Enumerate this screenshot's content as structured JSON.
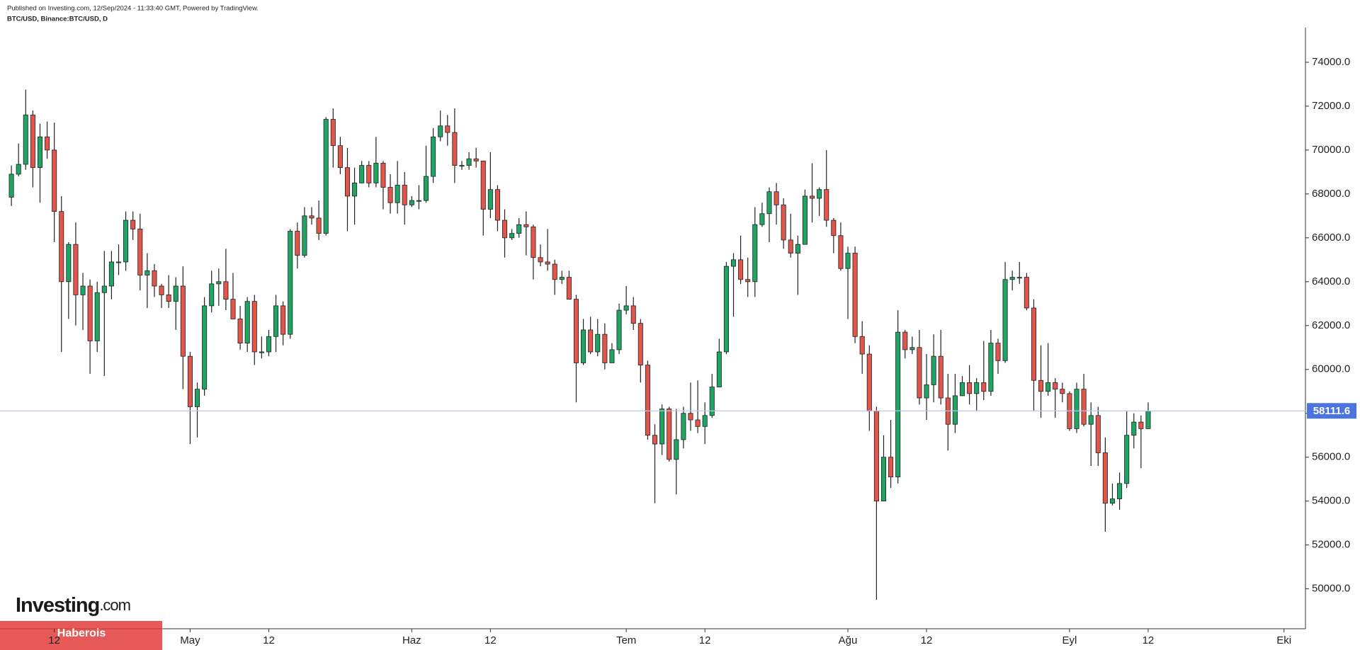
{
  "header": {
    "published": "Published on Investing.com, 12/Sep/2024 - 11:33:40 GMT, Powered by TradingView.",
    "symbol": "BTC/USD, Binance:BTC/USD, D"
  },
  "logo": {
    "brand": "Investing",
    "domain": ".com"
  },
  "watermark": "Haberois",
  "chart_data": {
    "type": "candlestick",
    "up_color": "#1fa463",
    "down_color": "#e2554b",
    "wick_color": "#222222",
    "last_price": 58111.6,
    "last_price_color": "#4c74e0",
    "ylim": [
      48180,
      75580
    ],
    "yticks": [
      {
        "value": 50000,
        "label": "50000.0"
      },
      {
        "value": 52000,
        "label": "52000.0"
      },
      {
        "value": 54000,
        "label": "54000.0"
      },
      {
        "value": 56000,
        "label": "56000.0"
      },
      {
        "value": 58000,
        "label": "58000.0"
      },
      {
        "value": 60000,
        "label": "60000.0"
      },
      {
        "value": 62000,
        "label": "62000.0"
      },
      {
        "value": 64000,
        "label": "64000.0"
      },
      {
        "value": 66000,
        "label": "66000.0"
      },
      {
        "value": 68000,
        "label": "68000.0"
      },
      {
        "value": 70000,
        "label": "70000.0"
      },
      {
        "value": 72000,
        "label": "72000.0"
      },
      {
        "value": 74000,
        "label": "74000.0"
      }
    ],
    "xlim": [
      "2024-04-05",
      "2024-10-04"
    ],
    "xticks": [
      {
        "value": "2024-04-12",
        "label": "12"
      },
      {
        "value": "2024-05-01",
        "label": "May"
      },
      {
        "value": "2024-05-12",
        "label": "12"
      },
      {
        "value": "2024-06-01",
        "label": "Haz"
      },
      {
        "value": "2024-06-12",
        "label": "12"
      },
      {
        "value": "2024-07-01",
        "label": "Tem"
      },
      {
        "value": "2024-07-12",
        "label": "12"
      },
      {
        "value": "2024-08-01",
        "label": "Ağu"
      },
      {
        "value": "2024-08-12",
        "label": "12"
      },
      {
        "value": "2024-09-01",
        "label": "Eyl"
      },
      {
        "value": "2024-09-12",
        "label": "12"
      },
      {
        "value": "2024-10-01",
        "label": "Eki"
      }
    ],
    "x": [
      "2024-04-06",
      "2024-04-07",
      "2024-04-08",
      "2024-04-09",
      "2024-04-10",
      "2024-04-11",
      "2024-04-12",
      "2024-04-13",
      "2024-04-14",
      "2024-04-15",
      "2024-04-16",
      "2024-04-17",
      "2024-04-18",
      "2024-04-19",
      "2024-04-20",
      "2024-04-21",
      "2024-04-22",
      "2024-04-23",
      "2024-04-24",
      "2024-04-25",
      "2024-04-26",
      "2024-04-27",
      "2024-04-28",
      "2024-04-29",
      "2024-04-30",
      "2024-05-01",
      "2024-05-02",
      "2024-05-03",
      "2024-05-04",
      "2024-05-05",
      "2024-05-06",
      "2024-05-07",
      "2024-05-08",
      "2024-05-09",
      "2024-05-10",
      "2024-05-11",
      "2024-05-12",
      "2024-05-13",
      "2024-05-14",
      "2024-05-15",
      "2024-05-16",
      "2024-05-17",
      "2024-05-18",
      "2024-05-19",
      "2024-05-20",
      "2024-05-21",
      "2024-05-22",
      "2024-05-23",
      "2024-05-24",
      "2024-05-25",
      "2024-05-26",
      "2024-05-27",
      "2024-05-28",
      "2024-05-29",
      "2024-05-30",
      "2024-05-31",
      "2024-06-01",
      "2024-06-02",
      "2024-06-03",
      "2024-06-04",
      "2024-06-05",
      "2024-06-06",
      "2024-06-07",
      "2024-06-08",
      "2024-06-09",
      "2024-06-10",
      "2024-06-11",
      "2024-06-12",
      "2024-06-13",
      "2024-06-14",
      "2024-06-15",
      "2024-06-16",
      "2024-06-17",
      "2024-06-18",
      "2024-06-19",
      "2024-06-20",
      "2024-06-21",
      "2024-06-22",
      "2024-06-23",
      "2024-06-24",
      "2024-06-25",
      "2024-06-26",
      "2024-06-27",
      "2024-06-28",
      "2024-06-29",
      "2024-06-30",
      "2024-07-01",
      "2024-07-02",
      "2024-07-03",
      "2024-07-04",
      "2024-07-05",
      "2024-07-06",
      "2024-07-07",
      "2024-07-08",
      "2024-07-09",
      "2024-07-10",
      "2024-07-11",
      "2024-07-12",
      "2024-07-13",
      "2024-07-14",
      "2024-07-15",
      "2024-07-16",
      "2024-07-17",
      "2024-07-18",
      "2024-07-19",
      "2024-07-20",
      "2024-07-21",
      "2024-07-22",
      "2024-07-23",
      "2024-07-24",
      "2024-07-25",
      "2024-07-26",
      "2024-07-27",
      "2024-07-28",
      "2024-07-29",
      "2024-07-30",
      "2024-07-31",
      "2024-08-01",
      "2024-08-02",
      "2024-08-03",
      "2024-08-04",
      "2024-08-05",
      "2024-08-06",
      "2024-08-07",
      "2024-08-08",
      "2024-08-09",
      "2024-08-10",
      "2024-08-11",
      "2024-08-12",
      "2024-08-13",
      "2024-08-14",
      "2024-08-15",
      "2024-08-16",
      "2024-08-17",
      "2024-08-18",
      "2024-08-19",
      "2024-08-20",
      "2024-08-21",
      "2024-08-22",
      "2024-08-23",
      "2024-08-24",
      "2024-08-25",
      "2024-08-26",
      "2024-08-27",
      "2024-08-28",
      "2024-08-29",
      "2024-08-30",
      "2024-08-31",
      "2024-09-01",
      "2024-09-02",
      "2024-09-03",
      "2024-09-04",
      "2024-09-05",
      "2024-09-06",
      "2024-09-07",
      "2024-09-08",
      "2024-09-09",
      "2024-09-10",
      "2024-09-11",
      "2024-09-12"
    ],
    "open": [
      67850,
      68900,
      69350,
      71600,
      69200,
      70600,
      70000,
      67200,
      64000,
      65700,
      63400,
      63800,
      61300,
      63500,
      63800,
      64900,
      64900,
      66800,
      66400,
      64300,
      64500,
      63800,
      63400,
      63100,
      63800,
      60600,
      58300,
      59100,
      62900,
      63900,
      64000,
      63200,
      62300,
      61200,
      63100,
      60800,
      60800,
      61500,
      62900,
      61600,
      66300,
      65200,
      67000,
      66900,
      66200,
      71400,
      70200,
      69200,
      67900,
      68500,
      69300,
      68500,
      69400,
      68300,
      67600,
      68400,
      67500,
      67700,
      67700,
      68800,
      70600,
      71100,
      70800,
      69300,
      69300,
      69600,
      69500,
      67300,
      68200,
      66800,
      66000,
      66200,
      66600,
      66500,
      65100,
      64900,
      64800,
      64100,
      64200,
      63200,
      60300,
      61800,
      60800,
      61600,
      60300,
      60900,
      62700,
      62900,
      62100,
      60200,
      57000,
      56600,
      58200,
      55900,
      56800,
      58000,
      57700,
      57400,
      57900,
      59200,
      60800,
      64700,
      65000,
      64100,
      64000,
      66600,
      67100,
      68100,
      67500,
      65900,
      65300,
      65700,
      67900,
      67800,
      68200,
      66800,
      66100,
      64600,
      65300,
      61500,
      60700,
      58100,
      54000,
      56000,
      55100,
      61700,
      60900,
      61000,
      58700,
      59300,
      60600,
      58700,
      57500,
      58800,
      59400,
      58900,
      59400,
      59000,
      61200,
      60400,
      64100,
      64200,
      64200,
      62800,
      59500,
      59000,
      59400,
      59100,
      58900,
      57300,
      59100,
      57500,
      57900,
      56200,
      53900,
      54100,
      54800,
      57000,
      57600,
      57300
    ],
    "high": [
      69300,
      70300,
      72750,
      71800,
      71200,
      71300,
      71250,
      67900,
      65800,
      66700,
      64400,
      64100,
      64000,
      65400,
      65400,
      65700,
      67200,
      67200,
      67100,
      65300,
      64800,
      63900,
      64300,
      64200,
      64700,
      60800,
      59400,
      63300,
      64500,
      64600,
      65500,
      64400,
      62900,
      63300,
      63400,
      61500,
      61800,
      63400,
      63100,
      66400,
      66700,
      67400,
      67400,
      67700,
      71500,
      71900,
      70600,
      70100,
      69200,
      69500,
      69500,
      70600,
      69500,
      68900,
      69500,
      69000,
      67900,
      68400,
      70200,
      71000,
      71800,
      71600,
      71900,
      69500,
      69900,
      70100,
      69500,
      69900,
      68400,
      67300,
      66400,
      66900,
      67200,
      66600,
      65700,
      66400,
      65000,
      64500,
      64500,
      63400,
      62300,
      62400,
      62300,
      62100,
      61200,
      63000,
      63800,
      63300,
      62300,
      60400,
      57500,
      58400,
      58300,
      58200,
      58300,
      59400,
      59500,
      58500,
      59800,
      61400,
      64900,
      65300,
      66100,
      65100,
      67400,
      67600,
      68300,
      68500,
      67800,
      67100,
      66100,
      68200,
      69400,
      68300,
      70000,
      66900,
      66700,
      65600,
      65600,
      62200,
      61100,
      58300,
      57000,
      57700,
      62700,
      61800,
      61500,
      61800,
      60700,
      61600,
      61800,
      59800,
      59800,
      59700,
      60200,
      59600,
      61300,
      61800,
      61400,
      64900,
      64500,
      64900,
      64400,
      63200,
      61100,
      61200,
      59600,
      59400,
      59000,
      59400,
      59800,
      58500,
      58300,
      56900,
      54800,
      55300,
      58100,
      58000,
      57900,
      58500
    ],
    "low": [
      67450,
      68800,
      69100,
      68300,
      67600,
      69600,
      65800,
      60800,
      62300,
      62000,
      61800,
      59800,
      60800,
      59700,
      63200,
      64300,
      64500,
      65900,
      63600,
      62800,
      63300,
      62800,
      62800,
      61800,
      59100,
      56600,
      56900,
      58800,
      62600,
      62900,
      62700,
      62300,
      60900,
      60800,
      60200,
      60500,
      60600,
      60800,
      61100,
      61400,
      64600,
      65100,
      66600,
      65900,
      66100,
      69200,
      68900,
      66300,
      66600,
      68500,
      68300,
      68300,
      67300,
      67100,
      67100,
      66600,
      67400,
      67300,
      67600,
      68500,
      70400,
      70200,
      68500,
      69100,
      69100,
      69200,
      66100,
      66900,
      66300,
      65100,
      65900,
      66000,
      65200,
      64100,
      64700,
      64500,
      63400,
      63900,
      63200,
      58500,
      60200,
      60700,
      60600,
      60000,
      60300,
      60700,
      62500,
      61800,
      59400,
      56800,
      53900,
      56100,
      55800,
      54300,
      56400,
      57200,
      57100,
      56600,
      57800,
      59200,
      60700,
      62400,
      63900,
      63300,
      63300,
      66500,
      65800,
      66600,
      65500,
      65100,
      63400,
      65700,
      66700,
      67000,
      66500,
      65300,
      64500,
      62300,
      61200,
      59800,
      57200,
      49500,
      54000,
      54600,
      54800,
      60500,
      60700,
      58400,
      57700,
      58500,
      58400,
      56300,
      57100,
      58800,
      58400,
      58100,
      58600,
      58800,
      59800,
      60300,
      63600,
      63900,
      62700,
      58100,
      57800,
      58800,
      57800,
      58500,
      57200,
      57100,
      57400,
      55600,
      55600,
      52600,
      53800,
      53600,
      54600,
      56400,
      55500,
      57300
    ],
    "close": [
      68900,
      69350,
      71600,
      69200,
      70600,
      70000,
      67200,
      64000,
      65700,
      63400,
      63800,
      61300,
      63500,
      63800,
      64900,
      64900,
      66800,
      66400,
      64300,
      64500,
      63800,
      63400,
      63100,
      63800,
      60600,
      58300,
      59100,
      62900,
      63900,
      64000,
      63200,
      62300,
      61200,
      63100,
      60800,
      60800,
      61500,
      62900,
      61600,
      66300,
      65200,
      67000,
      66900,
      66200,
      71400,
      70200,
      69200,
      67900,
      68500,
      69300,
      68500,
      69400,
      68300,
      67600,
      68400,
      67500,
      67700,
      67700,
      68800,
      70600,
      71100,
      70800,
      69300,
      69300,
      69600,
      69500,
      67300,
      68200,
      66800,
      66000,
      66200,
      66600,
      66500,
      65100,
      64900,
      64800,
      64100,
      64200,
      63200,
      60300,
      61800,
      60800,
      61600,
      60300,
      60900,
      62700,
      62900,
      62100,
      60200,
      57000,
      56600,
      58200,
      55900,
      56800,
      58000,
      57700,
      57400,
      57900,
      59200,
      60800,
      64700,
      65000,
      64100,
      64000,
      66600,
      67100,
      68100,
      67500,
      65900,
      65300,
      65700,
      67900,
      67800,
      68200,
      66800,
      66100,
      64600,
      65300,
      61500,
      60700,
      58100,
      54000,
      56000,
      55100,
      61700,
      60900,
      61000,
      58700,
      59300,
      60600,
      58700,
      57500,
      58800,
      59400,
      58900,
      59400,
      59000,
      61200,
      60400,
      64100,
      64200,
      64200,
      62800,
      59500,
      59000,
      59400,
      59100,
      58900,
      57300,
      59100,
      57500,
      57900,
      56200,
      53900,
      54100,
      54800,
      57000,
      57600,
      57300,
      58100
    ]
  }
}
